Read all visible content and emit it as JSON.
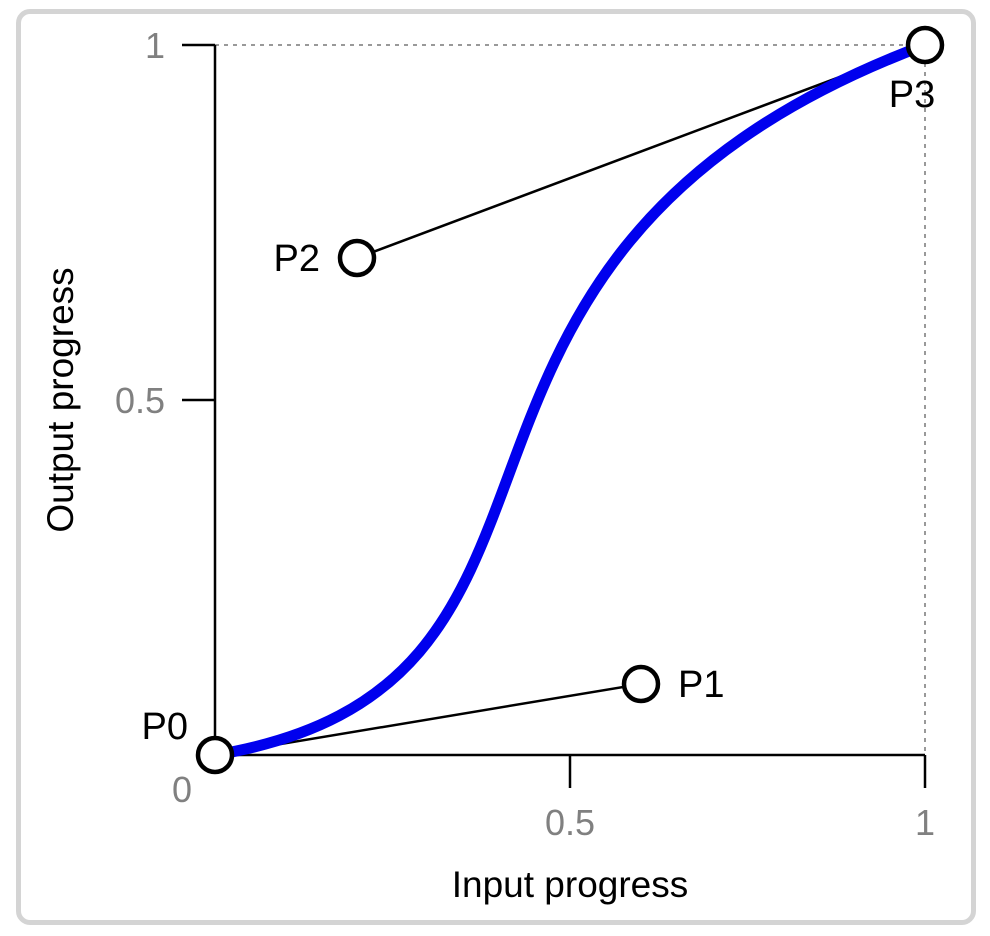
{
  "chart_data": {
    "type": "line",
    "title": "",
    "xlabel": "Input progress",
    "ylabel": "Output progress",
    "xlim": [
      0,
      1
    ],
    "ylim": [
      0,
      1
    ],
    "x_ticks": [
      {
        "value": 0.5,
        "label": "0.5"
      },
      {
        "value": 1,
        "label": "1"
      }
    ],
    "y_ticks": [
      {
        "value": 1,
        "label": "1"
      },
      {
        "value": 0.5,
        "label": "0.5"
      }
    ],
    "origin_label": "0",
    "curve": {
      "kind": "cubic-bezier",
      "color": "#0000ee"
    },
    "control_points": [
      {
        "label": "P0",
        "x": 0,
        "y": 0
      },
      {
        "label": "P1",
        "x": 0.6,
        "y": 0.1
      },
      {
        "label": "P2",
        "x": 0.2,
        "y": 0.7
      },
      {
        "label": "P3",
        "x": 1,
        "y": 1
      }
    ],
    "handle_color": "#000000",
    "guide_lines": "dashed",
    "grid": false
  }
}
